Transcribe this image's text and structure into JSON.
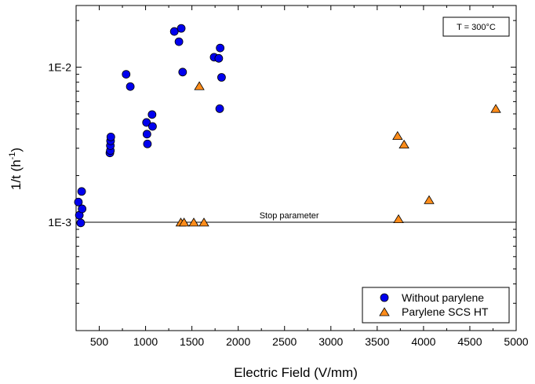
{
  "chart_data": {
    "type": "scatter",
    "xlabel": "Electric Field (V/mm)",
    "ylabel": "1/t (h",
    "ylabel_sup": "-1",
    "ylabel_end": ")",
    "xlim": [
      250,
      5000
    ],
    "ylim": [
      0.0002,
      0.025
    ],
    "yscale": "log",
    "x_ticks": [
      500,
      1000,
      1500,
      2000,
      2500,
      3000,
      3500,
      4000,
      4500,
      5000
    ],
    "y_ticks": [
      {
        "value": 0.001,
        "label": "1E-3"
      },
      {
        "value": 0.01,
        "label": "1E-2"
      }
    ],
    "grid": false,
    "legend_position": "bottom-right",
    "series": [
      {
        "name": "Without parylene",
        "marker": "circle",
        "color": "#0000ee",
        "points": [
          {
            "x": 275,
            "y": 0.00135
          },
          {
            "x": 285,
            "y": 0.00111
          },
          {
            "x": 300,
            "y": 0.00099
          },
          {
            "x": 310,
            "y": 0.00158
          },
          {
            "x": 315,
            "y": 0.00122
          },
          {
            "x": 615,
            "y": 0.0028
          },
          {
            "x": 620,
            "y": 0.0029
          },
          {
            "x": 620,
            "y": 0.00312
          },
          {
            "x": 622,
            "y": 0.00335
          },
          {
            "x": 625,
            "y": 0.00355
          },
          {
            "x": 790,
            "y": 0.009
          },
          {
            "x": 835,
            "y": 0.0075
          },
          {
            "x": 1010,
            "y": 0.0044
          },
          {
            "x": 1015,
            "y": 0.0037
          },
          {
            "x": 1020,
            "y": 0.0032
          },
          {
            "x": 1070,
            "y": 0.00495
          },
          {
            "x": 1075,
            "y": 0.00415
          },
          {
            "x": 1310,
            "y": 0.017
          },
          {
            "x": 1360,
            "y": 0.0146
          },
          {
            "x": 1385,
            "y": 0.0178
          },
          {
            "x": 1400,
            "y": 0.0093
          },
          {
            "x": 1740,
            "y": 0.0116
          },
          {
            "x": 1790,
            "y": 0.0114
          },
          {
            "x": 1800,
            "y": 0.0054
          },
          {
            "x": 1805,
            "y": 0.0133
          },
          {
            "x": 1820,
            "y": 0.0086
          }
        ]
      },
      {
        "name": "Parylene SCS HT",
        "marker": "triangle",
        "color": "#ff8c1a",
        "points": [
          {
            "x": 1380,
            "y": 0.00099
          },
          {
            "x": 1415,
            "y": 0.00099
          },
          {
            "x": 1520,
            "y": 0.00099
          },
          {
            "x": 1580,
            "y": 0.0075
          },
          {
            "x": 1630,
            "y": 0.00099
          },
          {
            "x": 3720,
            "y": 0.00358
          },
          {
            "x": 3730,
            "y": 0.00104
          },
          {
            "x": 3790,
            "y": 0.00315
          },
          {
            "x": 4060,
            "y": 0.00138
          },
          {
            "x": 4780,
            "y": 0.00535
          }
        ]
      }
    ],
    "reference_line": {
      "y": 0.001,
      "label": "Stop parameter"
    },
    "annotation_box": "T = 300°C"
  }
}
